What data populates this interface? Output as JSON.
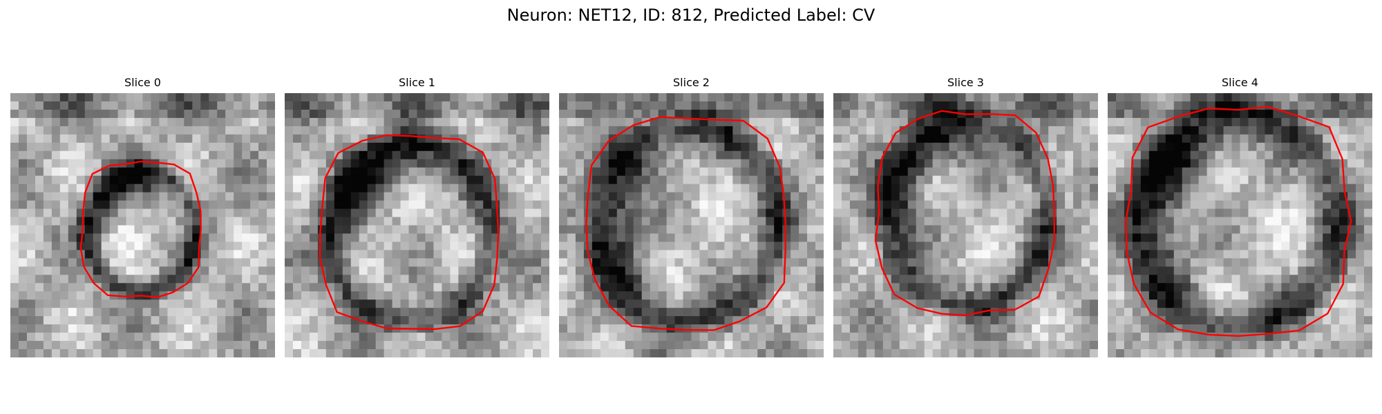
{
  "figure": {
    "title": "Neuron: NET12, ID: 812, Predicted Label: CV"
  },
  "colors": {
    "contour": "#ff0000",
    "background": "#ffffff"
  },
  "panels": [
    {
      "label": "Slice 0"
    },
    {
      "label": "Slice 1"
    },
    {
      "label": "Slice 2"
    },
    {
      "label": "Slice 3"
    },
    {
      "label": "Slice 4"
    }
  ]
}
